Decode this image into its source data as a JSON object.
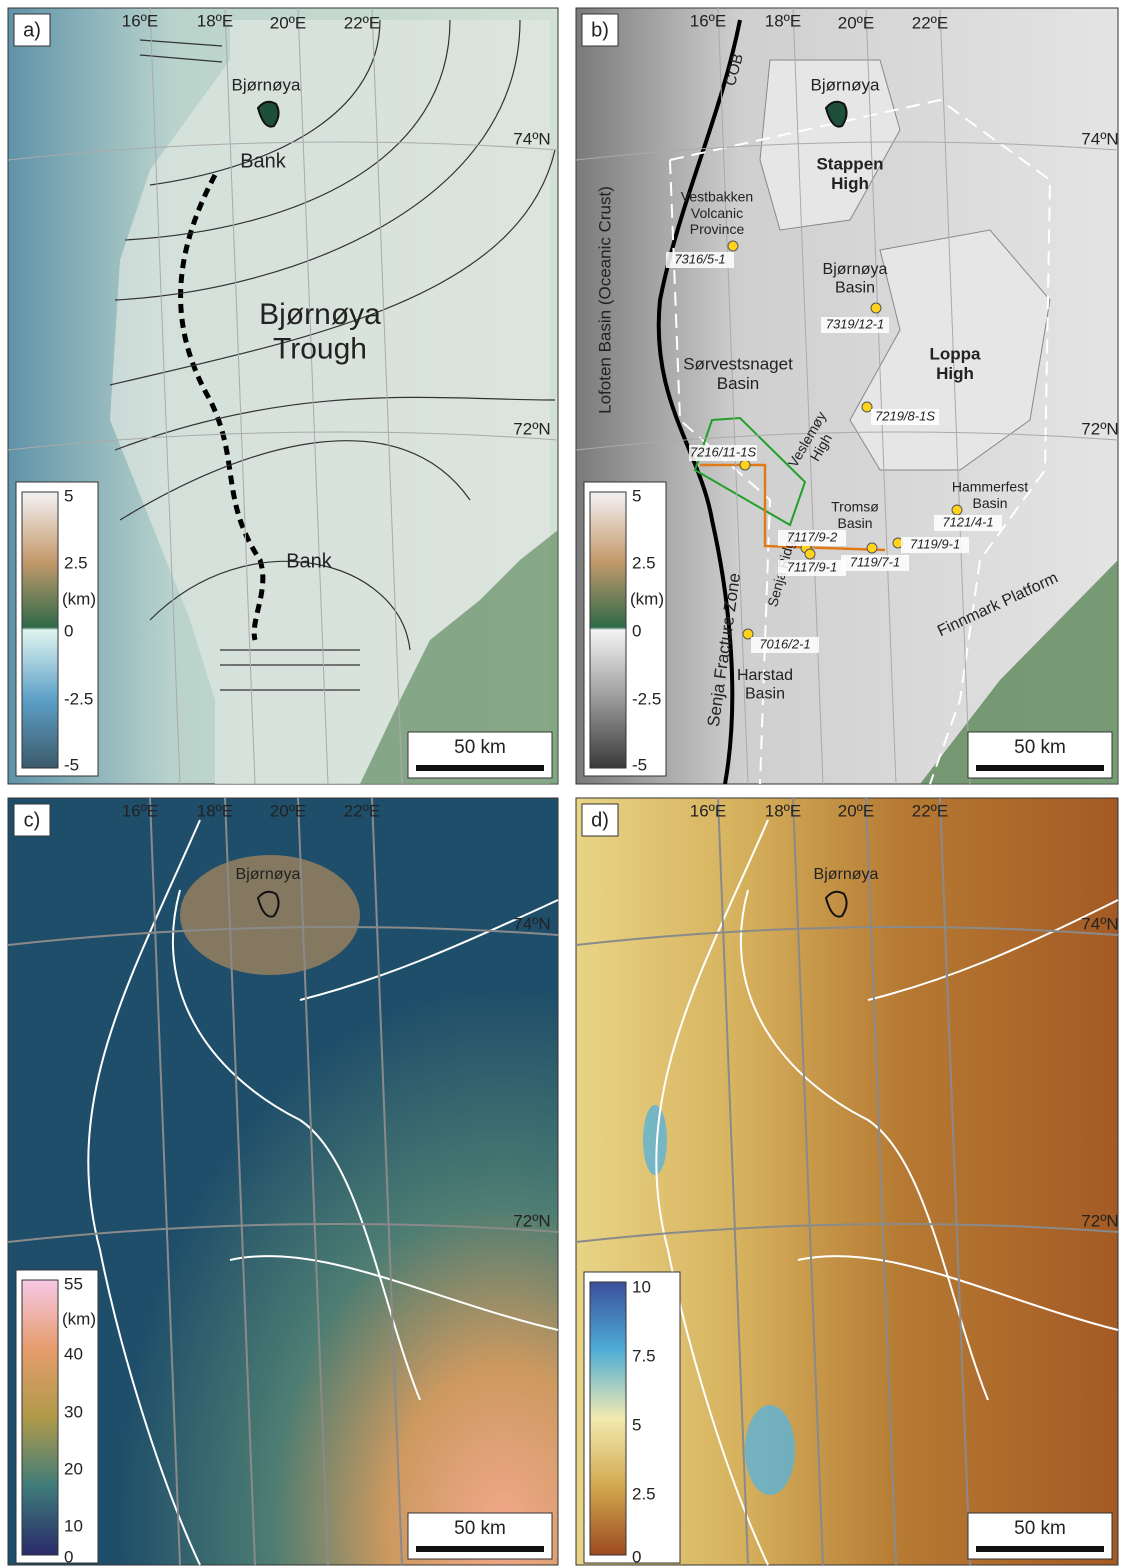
{
  "panels": [
    {
      "label": "a)",
      "longitudes": [
        "16ºE",
        "18ºE",
        "20ºE",
        "22ºE"
      ],
      "latitudes": [
        "74ºN",
        "72ºN"
      ],
      "places": [
        [
          "Bjørnøya"
        ],
        [
          "Bank"
        ],
        [
          "Bjørnøya",
          "Trough"
        ],
        [
          "Bank"
        ]
      ],
      "colorbar": {
        "ticks": [
          5,
          2.5,
          0,
          -2.5,
          -5
        ],
        "unit": "(km)"
      },
      "scale_bar": "50 km"
    },
    {
      "label": "b)",
      "longitudes": [
        "16ºE",
        "18ºE",
        "20ºE",
        "22ºE"
      ],
      "latitudes": [
        "74ºN",
        "72ºN"
      ],
      "places": [
        [
          "COB"
        ],
        [
          "Bjørnøya"
        ],
        [
          "Stappen",
          "High"
        ],
        [
          "Vestbakken",
          "Volcanic",
          "Province"
        ],
        [
          "Bjørnøya",
          "Basin"
        ],
        [
          "Lofoten Basin (Oceanic Crust)"
        ],
        [
          "Sørvestsnaget",
          "Basin"
        ],
        [
          "Loppa",
          "High"
        ],
        [
          "Veslemøy",
          "High"
        ],
        [
          "Tromsø",
          "Basin"
        ],
        [
          "Hammerfest",
          "Basin"
        ],
        [
          "Senja Ridge"
        ],
        [
          "Senja Fracture Zone"
        ],
        [
          "Finnmark Platform"
        ],
        [
          "Harstad",
          "Basin"
        ]
      ],
      "wells": [
        "7316/5-1",
        "7319/12-1",
        "7219/8-1S",
        "7216/11-1S",
        "7117/9-2",
        "7117/9-1",
        "7119/9-1",
        "7119/7-1",
        "7121/4-1",
        "7016/2-1"
      ],
      "colorbar": {
        "ticks": [
          5,
          2.5,
          0,
          -2.5,
          -5
        ],
        "unit": "(km)"
      },
      "scale_bar": "50 km"
    },
    {
      "label": "c)",
      "longitudes": [
        "16ºE",
        "18ºE",
        "20ºE",
        "22ºE"
      ],
      "latitudes": [
        "74ºN",
        "72ºN"
      ],
      "places": [
        [
          "Bjørnøya"
        ]
      ],
      "colorbar": {
        "ticks": [
          55,
          40,
          30,
          20,
          10,
          0
        ],
        "unit": "(km)"
      },
      "scale_bar": "50 km"
    },
    {
      "label": "d)",
      "longitudes": [
        "16ºE",
        "18ºE",
        "20ºE",
        "22ºE"
      ],
      "latitudes": [
        "74ºN",
        "72ºN"
      ],
      "places": [
        [
          "Bjørnøya"
        ]
      ],
      "colorbar": {
        "ticks": [
          10,
          7.5,
          5,
          2.5,
          0
        ]
      },
      "scale_bar": "50 km"
    }
  ]
}
